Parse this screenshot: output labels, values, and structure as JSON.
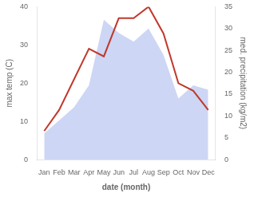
{
  "chart_data": {
    "type": "line",
    "xlabel": "date (month)",
    "ylabel": "max temp (C)",
    "y2label": "med. precipitation (kg/m2)",
    "categories": [
      "Jan",
      "Feb",
      "Mar",
      "Apr",
      "May",
      "Jun",
      "Jul",
      "Aug",
      "Sep",
      "Oct",
      "Nov",
      "Dec"
    ],
    "series": [
      {
        "type": "area",
        "axis": "y2",
        "color": "#b8c4f0",
        "values": [
          6.0,
          9.0,
          12.0,
          17.0,
          32.0,
          29.0,
          27.0,
          30.0,
          24.0,
          14.0,
          17.0,
          16.0
        ]
      },
      {
        "type": "line",
        "color": "#c0392b",
        "values": [
          7.5,
          13.0,
          21.0,
          29.0,
          27.0,
          37.0,
          37.0,
          40.0,
          33.0,
          20.0,
          18.0,
          13.0
        ]
      }
    ],
    "ylim": [
      0,
      40
    ],
    "yticks": [
      0,
      10,
      20,
      30,
      40
    ],
    "y2lim": [
      0,
      35
    ],
    "y2ticks": [
      0,
      5,
      10,
      15,
      20,
      25,
      30,
      35
    ],
    "grid": false
  }
}
